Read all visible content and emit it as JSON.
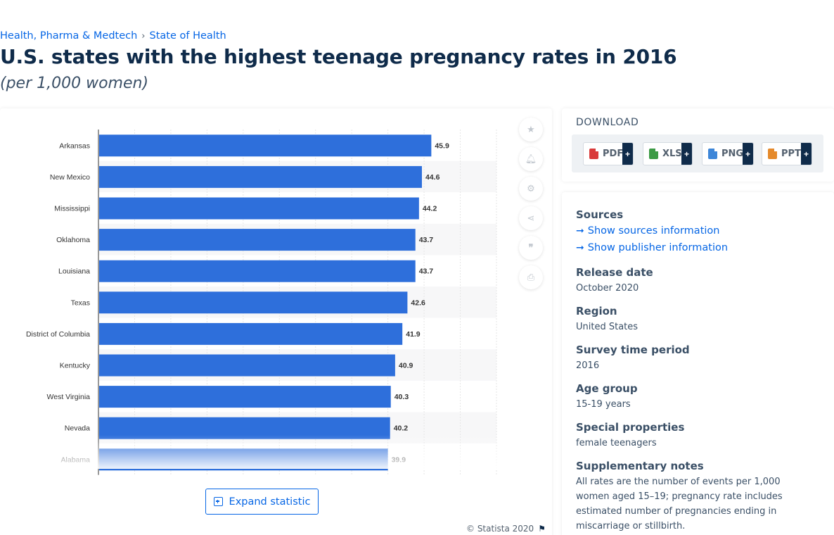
{
  "breadcrumb": {
    "items": [
      "Health, Pharma & Medtech",
      "State of Health"
    ],
    "separator": "›"
  },
  "page": {
    "title": "U.S. states with the highest teenage pregnancy rates in 2016",
    "subtitle": "(per 1,000 women)"
  },
  "chart_data": {
    "type": "bar",
    "orientation": "horizontal",
    "categories": [
      "Arkansas",
      "New Mexico",
      "Mississippi",
      "Oklahoma",
      "Louisiana",
      "Texas",
      "District of Columbia",
      "Kentucky",
      "West Virginia",
      "Nevada",
      "Alabama"
    ],
    "values": [
      45.9,
      44.6,
      44.2,
      43.7,
      43.7,
      42.6,
      41.9,
      40.9,
      40.3,
      40.2,
      39.9
    ],
    "data_labels": [
      "45.9",
      "44.6",
      "44.2",
      "43.7",
      "43.7",
      "42.6",
      "41.9",
      "40.9",
      "40.3",
      "40.2",
      "39.9"
    ],
    "xlim": [
      0,
      55
    ],
    "grid": true,
    "bar_color": "#2e6fdb",
    "faded_last_row": true
  },
  "toolbar": {
    "icons": [
      "star-icon",
      "bell-icon",
      "gear-icon",
      "share-icon",
      "quote-icon",
      "print-icon"
    ]
  },
  "expand": {
    "label": "Expand statistic"
  },
  "footer": {
    "copyright": "© Statista 2020"
  },
  "download": {
    "title": "DOWNLOAD",
    "buttons": [
      {
        "label": "PDF",
        "color": "#d93b3b"
      },
      {
        "label": "XLS",
        "color": "#3c9a45"
      },
      {
        "label": "PNG",
        "color": "#3d86d8"
      },
      {
        "label": "PPT",
        "color": "#e58a2c"
      }
    ],
    "plus": "+"
  },
  "info": {
    "sources_heading": "Sources",
    "show_sources": "Show sources information",
    "show_publisher": "Show publisher information",
    "release_date_heading": "Release date",
    "release_date": "October 2020",
    "region_heading": "Region",
    "region": "United States",
    "survey_period_heading": "Survey time period",
    "survey_period": "2016",
    "age_group_heading": "Age group",
    "age_group": "15-19 years",
    "special_properties_heading": "Special properties",
    "special_properties": "female teenagers",
    "supplementary_heading": "Supplementary notes",
    "supplementary": "All rates are the number of events per 1,000 women aged 15–19; pregnancy rate includes estimated number of pregnancies ending in miscarriage or stillbirth."
  }
}
